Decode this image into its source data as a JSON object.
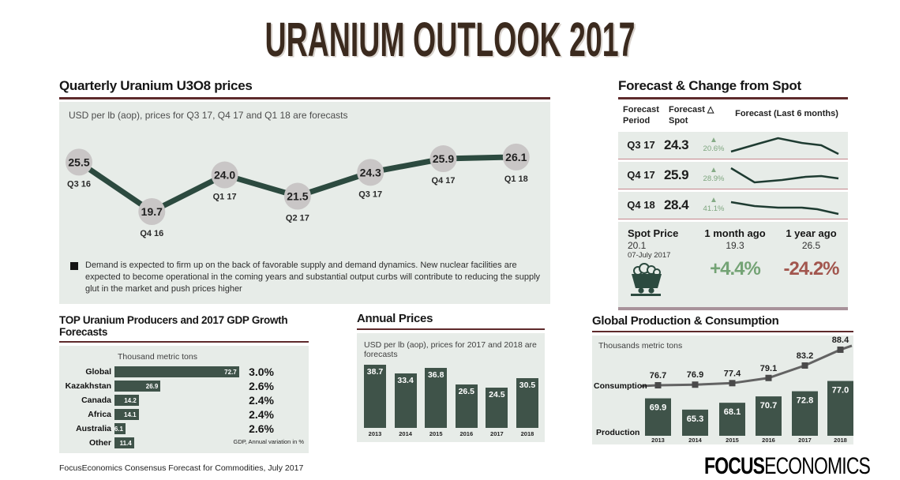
{
  "page": {
    "title": "URANIUM OUTLOOK 2017",
    "source_note": "FocusEconomics Consensus Forecast for Commodities, July 2017",
    "brand": {
      "bold": "FOCUS",
      "light": "ECONOMICS"
    }
  },
  "colors": {
    "panel_bg": "#e7ece8",
    "accent_underline": "#5e2a2b",
    "bar_green": "#3f5349",
    "line_green": "#2c4a3f",
    "point_gray": "#c9c6c6",
    "spark_green": "#1e3b31",
    "consumption_gray": "#636363",
    "marker_gray": "#4a4a4a",
    "up_green": "#85ab86",
    "pos_green": "#74a375",
    "neg_red": "#a2564e",
    "separator_red": "#c4868b",
    "spot_border": "#a8929a",
    "title_brown": "#3b2a1e"
  },
  "chart_data": [
    {
      "id": "quarterly_prices",
      "type": "line",
      "title": "Quarterly Uranium U3O8 prices",
      "subtitle": "USD per lb (aop), prices for Q3 17, Q4 17 and Q1 18 are forecasts",
      "categories": [
        "Q3 16",
        "Q4 16",
        "Q1 17",
        "Q2 17",
        "Q3 17",
        "Q4 17",
        "Q1 18"
      ],
      "values": [
        25.5,
        19.7,
        24.0,
        21.5,
        24.3,
        25.9,
        26.1
      ],
      "note": "Demand is expected to firm up on the back of favorable supply and demand dynamics. New nuclear facilities are expected to become operational in the coming years and substantial output curbs will contribute to reducing the supply glut in the market and push prices higher"
    },
    {
      "id": "forecast_table",
      "type": "table",
      "title": "Forecast & Change from Spot",
      "columns": [
        "Forecast Period",
        "Forecast △ Spot",
        "Forecast (Last 6 months)"
      ],
      "rows": [
        {
          "period": "Q3 17",
          "forecast": "24.3",
          "direction": "up",
          "change": "20.6%",
          "trend": [
            [
              5,
              23
            ],
            [
              40,
              13
            ],
            [
              65,
              6
            ],
            [
              95,
              12
            ],
            [
              120,
              15
            ],
            [
              142,
              26
            ]
          ]
        },
        {
          "period": "Q4 17",
          "forecast": "25.9",
          "direction": "up",
          "change": "28.9%",
          "trend": [
            [
              5,
              6
            ],
            [
              35,
              24
            ],
            [
              70,
              21
            ],
            [
              100,
              17
            ],
            [
              120,
              16
            ],
            [
              142,
              19
            ]
          ]
        },
        {
          "period": "Q4 18",
          "forecast": "28.4",
          "direction": "up",
          "change": "41.1%",
          "trend": [
            [
              5,
              11
            ],
            [
              35,
              16
            ],
            [
              65,
              18
            ],
            [
              95,
              18
            ],
            [
              115,
              20
            ],
            [
              142,
              26
            ]
          ]
        }
      ],
      "spot": {
        "label": "Spot Price",
        "value": "20.1",
        "date": "07-July 2017",
        "month": {
          "label": "1 month ago",
          "value": "19.3",
          "change": "+4.4%"
        },
        "year": {
          "label": "1 year ago",
          "value": "26.5",
          "change": "-24.2%"
        }
      }
    },
    {
      "id": "producers",
      "type": "bar",
      "title": "TOP Uranium Producers and 2017 GDP Growth Forecasts",
      "unit_label": "Thousand metric tons",
      "categories": [
        "Global",
        "Kazakhstan",
        "Canada",
        "Africa",
        "Australia",
        "Other"
      ],
      "values": [
        72.7,
        26.9,
        14.2,
        14.1,
        6.1,
        11.4
      ],
      "gdp_growth": [
        "3.0%",
        "2.6%",
        "2.4%",
        "2.4%",
        "2.6%",
        null
      ],
      "gdp_note": "GDP, Annual variation in %"
    },
    {
      "id": "annual_prices",
      "type": "bar",
      "title": "Annual Prices",
      "subtitle": "USD per lb (aop), prices for 2017 and 2018 are forecasts",
      "categories": [
        "2013",
        "2014",
        "2015",
        "2016",
        "2017",
        "2018"
      ],
      "values": [
        38.7,
        33.4,
        36.8,
        26.5,
        24.5,
        30.5
      ]
    },
    {
      "id": "production_consumption",
      "type": "bar+line",
      "title": "Global Production & Consumption",
      "unit_label": "Thousands metric tons",
      "categories": [
        "2013",
        "2014",
        "2015",
        "2016",
        "2017",
        "2018"
      ],
      "series": [
        {
          "name": "Consumption",
          "type": "line",
          "values": [
            76.7,
            76.9,
            77.4,
            79.1,
            83.2,
            88.4
          ]
        },
        {
          "name": "Production",
          "type": "bar",
          "values": [
            69.9,
            65.3,
            68.1,
            70.7,
            72.8,
            77.0
          ]
        }
      ]
    }
  ]
}
